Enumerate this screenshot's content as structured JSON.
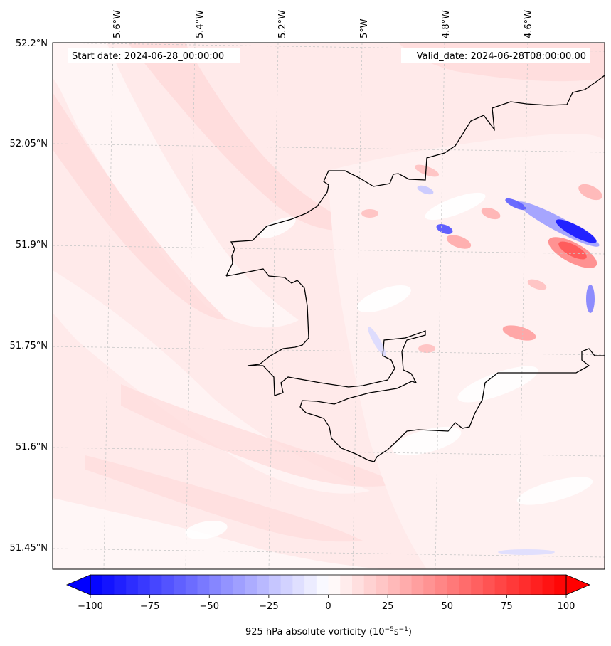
{
  "map": {
    "annotations": {
      "start_date": "Start date: 2024-06-28_00:00:00",
      "valid_date": "Valid_date: 2024-06-28T08:00:00.00"
    },
    "lon_labels": [
      "5.6°W",
      "5.4°W",
      "5.2°W",
      "5°W",
      "4.8°W",
      "4.6°W"
    ],
    "lat_labels": [
      "52.2°N",
      "52.05°N",
      "51.9°N",
      "51.75°N",
      "51.6°N",
      "51.45°N"
    ],
    "field": "925 hPa absolute vorticity",
    "colors": {
      "coastline": "#000000",
      "background_field": "#ffe9e9",
      "positive_light": "#ffd6d6",
      "positive_strong": "#ff4a4a",
      "negative_strong": "#1a1aff",
      "gridline": "#cccccc"
    }
  },
  "colorbar": {
    "label_prefix": "925 hPa absolute vorticity (10",
    "label_exp1": "−5",
    "label_mid": "s",
    "label_exp2": "−1",
    "label_suffix": ")",
    "ticks": [
      "−100",
      "−75",
      "−50",
      "−25",
      "0",
      "25",
      "50",
      "75",
      "100"
    ],
    "min": -100,
    "max": 100,
    "step": 5,
    "cmap": "bwr"
  }
}
